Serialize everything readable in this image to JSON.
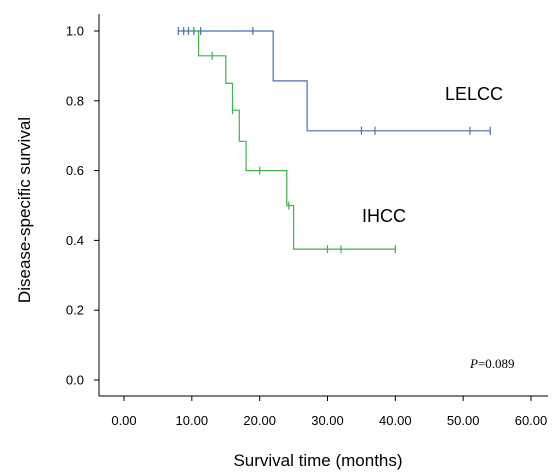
{
  "chart_data": {
    "type": "line",
    "subtype": "kaplan-meier step",
    "xlabel": "Survival time (months)",
    "ylabel": "Disease-specific survival",
    "xlim": [
      0,
      60
    ],
    "ylim": [
      0,
      1.0
    ],
    "x_ticks": [
      "0.00",
      "10.00",
      "20.00",
      "30.00",
      "40.00",
      "50.00",
      "60.00"
    ],
    "y_ticks": [
      "0.0",
      "0.2",
      "0.4",
      "0.6",
      "0.8",
      "1.0"
    ],
    "grid": false,
    "annotation": {
      "p_label": "P",
      "p_value": "=0.089"
    },
    "series": [
      {
        "name": "LELCC",
        "color": "#4a6fb5",
        "steps": [
          [
            8,
            1.0
          ],
          [
            22,
            1.0
          ],
          [
            22,
            0.857
          ],
          [
            27,
            0.857
          ],
          [
            27,
            0.714
          ],
          [
            54,
            0.714
          ]
        ],
        "censored": [
          [
            8,
            1.0
          ],
          [
            8.8,
            1.0
          ],
          [
            9.5,
            1.0
          ],
          [
            10.3,
            1.0
          ],
          [
            11.3,
            1.0
          ],
          [
            19,
            1.0
          ],
          [
            35,
            0.714
          ],
          [
            37,
            0.714
          ],
          [
            51,
            0.714
          ],
          [
            54,
            0.714
          ]
        ]
      },
      {
        "name": "IHCC",
        "color": "#3cb44b",
        "steps": [
          [
            9,
            1.0
          ],
          [
            11,
            1.0
          ],
          [
            11,
            0.929
          ],
          [
            15,
            0.929
          ],
          [
            15,
            0.85
          ],
          [
            16,
            0.85
          ],
          [
            16,
            0.773
          ],
          [
            17,
            0.773
          ],
          [
            17,
            0.684
          ],
          [
            18,
            0.684
          ],
          [
            18,
            0.6
          ],
          [
            24,
            0.6
          ],
          [
            24,
            0.5
          ],
          [
            25,
            0.5
          ],
          [
            25,
            0.375
          ],
          [
            40,
            0.375
          ]
        ],
        "censored": [
          [
            13,
            0.929
          ],
          [
            16,
            0.773
          ],
          [
            20,
            0.6
          ],
          [
            24.3,
            0.5
          ],
          [
            30,
            0.375
          ],
          [
            32,
            0.375
          ],
          [
            40,
            0.375
          ]
        ]
      }
    ]
  }
}
